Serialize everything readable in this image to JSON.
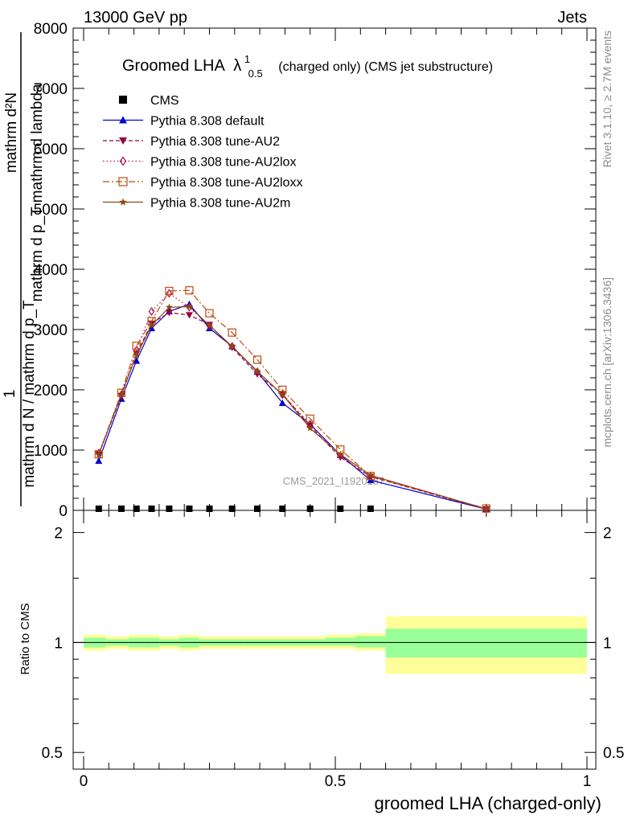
{
  "header": {
    "left": "13000 GeV pp",
    "right": "Jets"
  },
  "title": {
    "main": "Groomed LHA",
    "lambda": "λ",
    "sub": "0.5",
    "sup": "1",
    "rest": "(charged only) (CMS jet substructure)"
  },
  "side": {
    "rivet": "Rivet 3.1.10, ≥ 2.7M events",
    "mcplots": "mcplots.cern.ch [arXiv:1306.3436]"
  },
  "watermark": "CMS_2021_I1920187",
  "axes": {
    "xlabel": "groomed LHA (charged-only)",
    "ylabel_numer": "mathrm d²N",
    "ylabel_denom": "mathrm d p_T mathrm d lambda",
    "ylabel_line2_numer": "1",
    "ylabel_line2_denom": "mathrm d N / mathrm d p_T",
    "ratio_label": "Ratio to CMS"
  },
  "chart_data": {
    "type": "line",
    "xlim": [
      0,
      1
    ],
    "ylim": [
      0,
      8000
    ],
    "yticks": [
      0,
      1000,
      2000,
      3000,
      4000,
      5000,
      6000,
      7000,
      8000
    ],
    "ytick_labels": [
      "0",
      "1000",
      "2000",
      "3000",
      "4000",
      "5000",
      "6000",
      "7000",
      "8000"
    ],
    "xticks": [
      0,
      0.5,
      1
    ],
    "xtick_labels": [
      "0",
      "0.5",
      "1"
    ],
    "x": [
      0.03,
      0.075,
      0.105,
      0.135,
      0.17,
      0.21,
      0.25,
      0.295,
      0.345,
      0.395,
      0.45,
      0.51,
      0.57,
      0.8
    ],
    "ratio": {
      "ylim_log": [
        0.45,
        2.3
      ],
      "yticks": [
        0.5,
        1,
        2
      ],
      "ytick_labels": [
        "0.5",
        "1",
        "2"
      ],
      "bands": [
        {
          "x0": 0.0,
          "x1": 0.045,
          "inner": [
            0.97,
            1.03
          ],
          "outer": [
            0.95,
            1.05
          ]
        },
        {
          "x0": 0.045,
          "x1": 0.09,
          "inner": [
            0.98,
            1.02
          ],
          "outer": [
            0.96,
            1.04
          ]
        },
        {
          "x0": 0.09,
          "x1": 0.12,
          "inner": [
            0.97,
            1.03
          ],
          "outer": [
            0.95,
            1.05
          ]
        },
        {
          "x0": 0.12,
          "x1": 0.15,
          "inner": [
            0.97,
            1.03
          ],
          "outer": [
            0.95,
            1.05
          ]
        },
        {
          "x0": 0.15,
          "x1": 0.19,
          "inner": [
            0.98,
            1.02
          ],
          "outer": [
            0.96,
            1.04
          ]
        },
        {
          "x0": 0.19,
          "x1": 0.23,
          "inner": [
            0.97,
            1.03
          ],
          "outer": [
            0.95,
            1.05
          ]
        },
        {
          "x0": 0.23,
          "x1": 0.27,
          "inner": [
            0.98,
            1.02
          ],
          "outer": [
            0.96,
            1.04
          ]
        },
        {
          "x0": 0.27,
          "x1": 0.32,
          "inner": [
            0.98,
            1.02
          ],
          "outer": [
            0.96,
            1.04
          ]
        },
        {
          "x0": 0.32,
          "x1": 0.37,
          "inner": [
            0.98,
            1.02
          ],
          "outer": [
            0.96,
            1.04
          ]
        },
        {
          "x0": 0.37,
          "x1": 0.42,
          "inner": [
            0.98,
            1.02
          ],
          "outer": [
            0.96,
            1.04
          ]
        },
        {
          "x0": 0.42,
          "x1": 0.48,
          "inner": [
            0.98,
            1.02
          ],
          "outer": [
            0.96,
            1.04
          ]
        },
        {
          "x0": 0.48,
          "x1": 0.54,
          "inner": [
            0.98,
            1.03
          ],
          "outer": [
            0.96,
            1.05
          ]
        },
        {
          "x0": 0.54,
          "x1": 0.6,
          "inner": [
            0.97,
            1.04
          ],
          "outer": [
            0.95,
            1.06
          ]
        },
        {
          "x0": 0.6,
          "x1": 1.0,
          "inner": [
            0.91,
            1.09
          ],
          "outer": [
            0.82,
            1.18
          ]
        }
      ]
    },
    "series": [
      {
        "name": "CMS",
        "color": "#000000",
        "marker": "square",
        "dash": "",
        "values": [
          3,
          3,
          3,
          3,
          3,
          3,
          3,
          3,
          3,
          3,
          3,
          3,
          3,
          null
        ]
      },
      {
        "name": "Pythia 8.308 default",
        "color": "#0000cc",
        "marker": "triangle-up",
        "dash": "",
        "values": [
          820,
          1850,
          2480,
          3020,
          3300,
          3420,
          3020,
          2720,
          2300,
          1780,
          1430,
          920,
          500,
          20
        ]
      },
      {
        "name": "Pythia 8.308 tune-AU2",
        "color": "#99003d",
        "marker": "triangle-down",
        "dash": "5,3",
        "values": [
          930,
          1900,
          2600,
          3100,
          3280,
          3240,
          3080,
          2700,
          2260,
          1930,
          1400,
          880,
          560,
          20
        ]
      },
      {
        "name": "Pythia 8.308 tune-AU2lox",
        "color": "#b0104a",
        "marker": "diamond",
        "dash": "1.5,3",
        "values": [
          950,
          1920,
          2660,
          3300,
          3600,
          3370,
          3060,
          2720,
          2300,
          1920,
          1430,
          900,
          560,
          20
        ]
      },
      {
        "name": "Pythia 8.308 tune-AU2loxx",
        "color": "#c04a10",
        "marker": "square-open",
        "dash": "8,3,2,3",
        "values": [
          930,
          1950,
          2730,
          3140,
          3640,
          3650,
          3270,
          2950,
          2500,
          2000,
          1520,
          1010,
          570,
          30
        ]
      },
      {
        "name": "Pythia 8.308 tune-AU2m",
        "color": "#8a4a10",
        "marker": "star",
        "dash": "",
        "values": [
          920,
          1930,
          2570,
          3070,
          3370,
          3380,
          3070,
          2720,
          2310,
          1920,
          1360,
          930,
          580,
          25
        ]
      }
    ]
  }
}
